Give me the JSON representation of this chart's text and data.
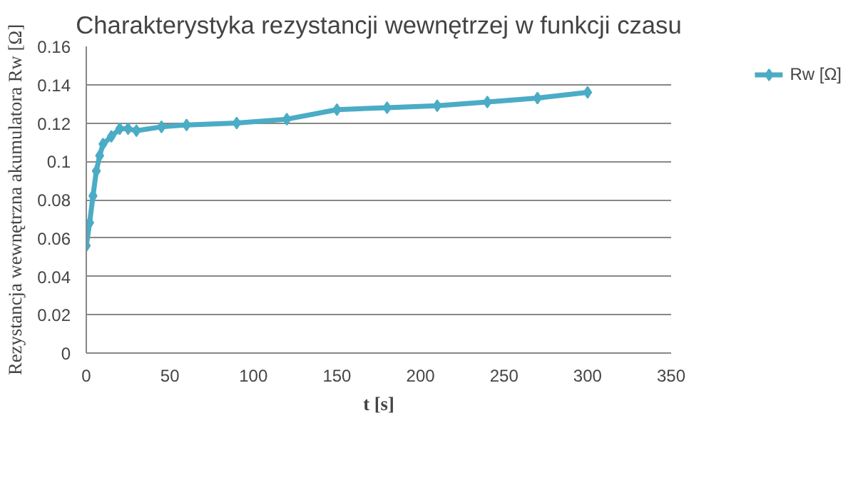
{
  "chart_data": {
    "type": "line",
    "title": "Charakterystyka rezystancji wewnętrzej w funkcji czasu",
    "xlabel": "t [s]",
    "ylabel": "Rezystancja wewnętrzna akumulatora Rw [Ω]",
    "x": [
      0,
      2,
      4,
      6,
      8,
      10,
      15,
      20,
      25,
      30,
      45,
      60,
      90,
      120,
      150,
      180,
      210,
      240,
      270,
      300
    ],
    "series": [
      {
        "name": "Rw [Ω]",
        "color": "#4bacc6",
        "values": [
          0.056,
          0.068,
          0.082,
          0.095,
          0.103,
          0.109,
          0.113,
          0.117,
          0.117,
          0.116,
          0.118,
          0.119,
          0.12,
          0.122,
          0.127,
          0.128,
          0.129,
          0.131,
          0.133,
          0.136
        ]
      }
    ],
    "xlim": [
      0,
      350
    ],
    "xticks": [
      0,
      50,
      100,
      150,
      200,
      250,
      300,
      350
    ],
    "ylim": [
      0,
      0.16
    ],
    "yticks": [
      0,
      0.02,
      0.04,
      0.06,
      0.08,
      0.1,
      0.12,
      0.14,
      0.16
    ],
    "grid": "y",
    "legend": "right",
    "marker": "diamond",
    "line_style": "solid"
  }
}
